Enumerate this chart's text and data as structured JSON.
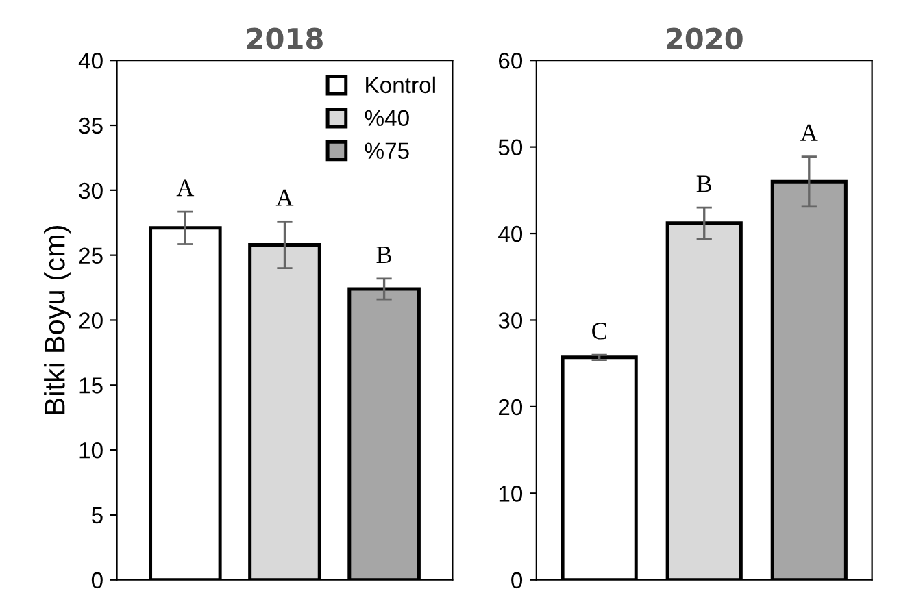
{
  "chart_data": [
    {
      "type": "bar",
      "title": "2018",
      "ylabel": "Bitki Boyu (cm)",
      "categories": [
        null
      ],
      "ylim": [
        0,
        40
      ],
      "yticks": [
        0,
        5,
        10,
        15,
        20,
        25,
        30,
        35,
        40
      ],
      "grid": false,
      "legend": "top right",
      "series": [
        {
          "name": "Kontrol",
          "color": "#ffffff",
          "values": [
            27.1
          ],
          "errors": [
            1.25
          ],
          "value_labels": [
            "A"
          ]
        },
        {
          "name": "%40",
          "color": "#d9d9d9",
          "values": [
            25.8
          ],
          "errors": [
            1.8
          ],
          "value_labels": [
            "A"
          ]
        },
        {
          "name": "%75",
          "color": "#a6a6a6",
          "values": [
            22.4
          ],
          "errors": [
            0.8
          ],
          "value_labels": [
            "B"
          ]
        }
      ]
    },
    {
      "type": "bar",
      "title": "2020",
      "categories": [
        null,
        null,
        null
      ],
      "ylim": [
        0,
        60
      ],
      "yticks": [
        0,
        10,
        20,
        30,
        40,
        50,
        60
      ],
      "grid": false,
      "series": [
        {
          "colors": [
            "#ffffff",
            "#d9d9d9",
            "#a6a6a6"
          ],
          "values": [
            25.7,
            41.2,
            46.0
          ],
          "errors": [
            0.3,
            1.8,
            2.9
          ],
          "value_labels": [
            "C",
            "B",
            "A"
          ]
        }
      ]
    }
  ]
}
